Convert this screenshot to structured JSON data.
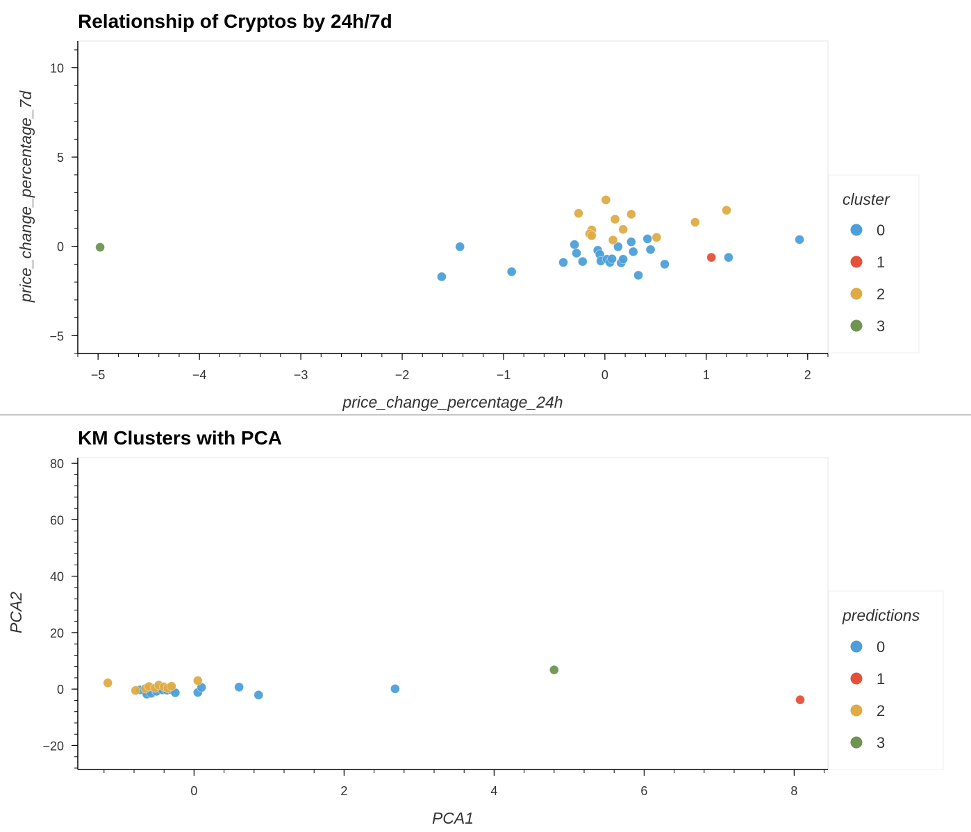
{
  "colors": {
    "0": "#4c9fd8",
    "1": "#e5503a",
    "2": "#deab44",
    "3": "#6f9452"
  },
  "chart_data": [
    {
      "type": "scatter",
      "title": "Relationship of Cryptos by 24h/7d",
      "xlabel": "price_change_percentage_24h",
      "ylabel": "price_change_percentage_7d",
      "xlim": [
        -5.2,
        2.2
      ],
      "ylim": [
        -6,
        11.5
      ],
      "xticks": [
        -5,
        -4,
        -3,
        -2,
        -1,
        0,
        1,
        2
      ],
      "yticks": [
        -5,
        0,
        5,
        10
      ],
      "grid": false,
      "legend": {
        "title": "cluster",
        "placement": "right",
        "entries": [
          "0",
          "1",
          "2",
          "3"
        ]
      },
      "points": [
        {
          "x": -4.98,
          "y": -0.05,
          "c": "3"
        },
        {
          "x": -1.43,
          "y": -0.02,
          "c": "0"
        },
        {
          "x": -1.61,
          "y": -1.7,
          "c": "0"
        },
        {
          "x": -0.92,
          "y": -1.42,
          "c": "0"
        },
        {
          "x": -0.41,
          "y": -0.9,
          "c": "0"
        },
        {
          "x": -0.3,
          "y": 0.1,
          "c": "0"
        },
        {
          "x": -0.28,
          "y": -0.38,
          "c": "0"
        },
        {
          "x": -0.22,
          "y": -0.85,
          "c": "0"
        },
        {
          "x": -0.07,
          "y": -0.22,
          "c": "0"
        },
        {
          "x": -0.05,
          "y": -0.45,
          "c": "0"
        },
        {
          "x": -0.04,
          "y": -0.82,
          "c": "0"
        },
        {
          "x": 0.02,
          "y": -0.72,
          "c": "0"
        },
        {
          "x": 0.05,
          "y": -0.9,
          "c": "0"
        },
        {
          "x": 0.07,
          "y": -0.7,
          "c": "0"
        },
        {
          "x": 0.13,
          "y": -0.02,
          "c": "0"
        },
        {
          "x": 0.16,
          "y": -0.92,
          "c": "0"
        },
        {
          "x": 0.18,
          "y": -0.72,
          "c": "0"
        },
        {
          "x": 0.26,
          "y": 0.25,
          "c": "0"
        },
        {
          "x": 0.28,
          "y": -0.3,
          "c": "0"
        },
        {
          "x": 0.33,
          "y": -1.62,
          "c": "0"
        },
        {
          "x": 0.42,
          "y": 0.42,
          "c": "0"
        },
        {
          "x": 0.45,
          "y": -0.18,
          "c": "0"
        },
        {
          "x": 0.59,
          "y": -1.0,
          "c": "0"
        },
        {
          "x": 1.22,
          "y": -0.62,
          "c": "0"
        },
        {
          "x": 1.92,
          "y": 0.38,
          "c": "0"
        },
        {
          "x": 1.05,
          "y": -0.62,
          "c": "1"
        },
        {
          "x": -0.26,
          "y": 1.85,
          "c": "2"
        },
        {
          "x": -0.13,
          "y": 0.92,
          "c": "2"
        },
        {
          "x": -0.15,
          "y": 0.7,
          "c": "2"
        },
        {
          "x": -0.13,
          "y": 0.6,
          "c": "2"
        },
        {
          "x": 0.01,
          "y": 2.6,
          "c": "2"
        },
        {
          "x": 0.08,
          "y": 0.35,
          "c": "2"
        },
        {
          "x": 0.1,
          "y": 1.52,
          "c": "2"
        },
        {
          "x": 0.18,
          "y": 0.95,
          "c": "2"
        },
        {
          "x": 0.26,
          "y": 1.8,
          "c": "2"
        },
        {
          "x": 0.51,
          "y": 0.5,
          "c": "2"
        },
        {
          "x": 0.89,
          "y": 1.35,
          "c": "2"
        },
        {
          "x": 1.2,
          "y": 2.02,
          "c": "2"
        }
      ]
    },
    {
      "type": "scatter",
      "title": "KM Clusters with PCA",
      "xlabel": "PCA1",
      "ylabel": "PCA2",
      "xlim": [
        -1.55,
        8.45
      ],
      "ylim": [
        -28.5,
        82
      ],
      "xticks": [
        0,
        2,
        4,
        6,
        8
      ],
      "yticks": [
        -20,
        0,
        20,
        40,
        60,
        80
      ],
      "grid": false,
      "legend": {
        "title": "predictions",
        "placement": "right",
        "entries": [
          "0",
          "1",
          "2",
          "3"
        ]
      },
      "points": [
        {
          "x": -0.72,
          "y": -0.3,
          "c": "0"
        },
        {
          "x": -0.63,
          "y": -1.8,
          "c": "0"
        },
        {
          "x": -0.57,
          "y": -1.5,
          "c": "0"
        },
        {
          "x": -0.5,
          "y": -0.8,
          "c": "0"
        },
        {
          "x": -0.42,
          "y": -0.3,
          "c": "0"
        },
        {
          "x": -0.36,
          "y": -0.4,
          "c": "0"
        },
        {
          "x": -0.3,
          "y": -0.3,
          "c": "0"
        },
        {
          "x": -0.25,
          "y": -1.3,
          "c": "0"
        },
        {
          "x": 0.05,
          "y": -1.2,
          "c": "0"
        },
        {
          "x": 0.1,
          "y": 0.6,
          "c": "0"
        },
        {
          "x": 0.6,
          "y": 0.7,
          "c": "0"
        },
        {
          "x": 0.86,
          "y": -2.1,
          "c": "0"
        },
        {
          "x": 2.68,
          "y": 0.1,
          "c": "0"
        },
        {
          "x": 8.08,
          "y": -3.8,
          "c": "1"
        },
        {
          "x": -1.15,
          "y": 2.2,
          "c": "2"
        },
        {
          "x": -0.78,
          "y": -0.5,
          "c": "2"
        },
        {
          "x": -0.65,
          "y": 0.2,
          "c": "2"
        },
        {
          "x": -0.6,
          "y": 0.9,
          "c": "2"
        },
        {
          "x": -0.52,
          "y": 0.4,
          "c": "2"
        },
        {
          "x": -0.47,
          "y": 1.4,
          "c": "2"
        },
        {
          "x": -0.4,
          "y": 0.8,
          "c": "2"
        },
        {
          "x": -0.35,
          "y": 0.3,
          "c": "2"
        },
        {
          "x": -0.3,
          "y": 1.0,
          "c": "2"
        },
        {
          "x": 0.05,
          "y": 3.0,
          "c": "2"
        },
        {
          "x": 4.8,
          "y": 6.8,
          "c": "3"
        }
      ]
    }
  ]
}
